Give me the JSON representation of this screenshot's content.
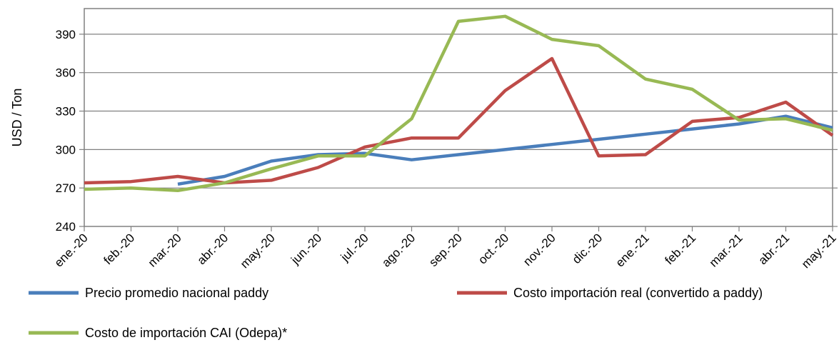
{
  "chart_data": {
    "type": "line",
    "title": "",
    "xlabel": "",
    "ylabel": "USD / Ton",
    "ylim": [
      240,
      410
    ],
    "yticks": [
      240,
      270,
      300,
      330,
      360,
      390
    ],
    "grid": "horizontal",
    "legend_position": "bottom",
    "categories": [
      "ene.-20",
      "feb.-20",
      "mar.-20",
      "abr.-20",
      "may.-20",
      "jun.-20",
      "jul.-20",
      "ago.-20",
      "sep.-20",
      "oct.-20",
      "nov.-20",
      "dic.-20",
      "ene.-21",
      "feb.-21",
      "mar.-21",
      "abr.-21",
      "may.-21"
    ],
    "series": [
      {
        "name": "Precio promedio nacional paddy",
        "color": "#4a7ebb",
        "values": [
          null,
          null,
          273,
          279,
          291,
          296,
          297,
          292,
          296,
          300,
          304,
          308,
          312,
          316,
          320,
          326,
          317
        ]
      },
      {
        "name": "Costo importación real (convertido a paddy)",
        "color": "#be4b48",
        "values": [
          274,
          275,
          279,
          274,
          276,
          286,
          302,
          309,
          309,
          346,
          371,
          295,
          296,
          322,
          325,
          337,
          311
        ]
      },
      {
        "name": "Costo de importación CAI (Odepa)*",
        "color": "#98b954",
        "values": [
          269,
          270,
          268,
          274,
          285,
          295,
          295,
          324,
          400,
          404,
          386,
          381,
          355,
          347,
          323,
          324,
          315
        ]
      }
    ]
  }
}
